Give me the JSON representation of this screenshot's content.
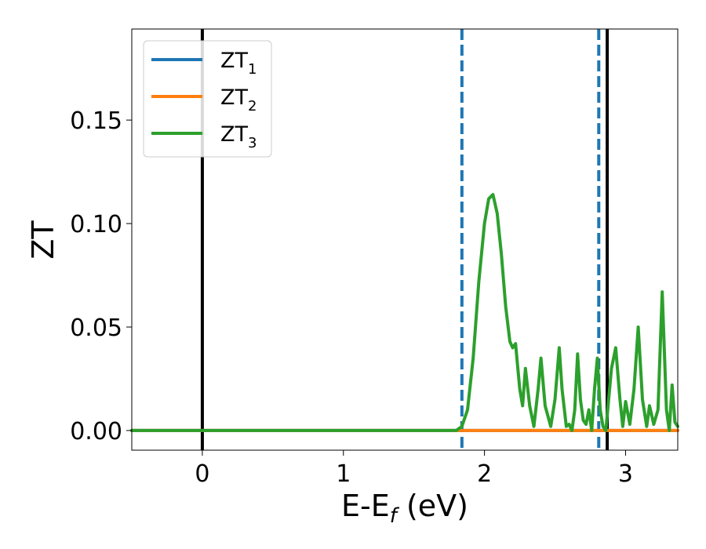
{
  "chart_data": {
    "type": "line",
    "xlabel": "E-E",
    "xlabel_sub": "f",
    "xlabel_unit": " (eV)",
    "ylabel": "ZT",
    "xlim": [
      -0.5,
      3.37
    ],
    "ylim": [
      -0.0095,
      0.194
    ],
    "grid": false,
    "legend_position": "top-left",
    "xticks": [
      {
        "value": 0,
        "label": "0"
      },
      {
        "value": 1,
        "label": "1"
      },
      {
        "value": 2,
        "label": "2"
      },
      {
        "value": 3,
        "label": "3"
      }
    ],
    "yticks": [
      {
        "value": 0.0,
        "label": "0.00"
      },
      {
        "value": 0.05,
        "label": "0.05"
      },
      {
        "value": 0.1,
        "label": "0.10"
      },
      {
        "value": 0.15,
        "label": "0.15"
      }
    ],
    "vlines": [
      {
        "x": 0.0,
        "color": "#000000",
        "style": "solid"
      },
      {
        "x": 2.87,
        "color": "#000000",
        "style": "solid"
      },
      {
        "x": 1.84,
        "color": "#1f77b4",
        "style": "dashed"
      },
      {
        "x": 2.81,
        "color": "#1f77b4",
        "style": "dashed"
      }
    ],
    "series": [
      {
        "name": "ZT",
        "name_sub": "1",
        "color": "#1f77b4",
        "x": [
          -0.5,
          1.84,
          3.37
        ],
        "y": [
          0.0,
          0.0,
          0.0
        ]
      },
      {
        "name": "ZT",
        "name_sub": "2",
        "color": "#ff7f0e",
        "x": [
          -0.5,
          1.84,
          3.37
        ],
        "y": [
          0.0,
          0.0,
          0.0
        ]
      },
      {
        "name": "ZT",
        "name_sub": "3",
        "color": "#2ca02c",
        "x": [
          -0.5,
          1.8,
          1.84,
          1.88,
          1.92,
          1.96,
          2.0,
          2.03,
          2.06,
          2.09,
          2.12,
          2.15,
          2.18,
          2.2,
          2.22,
          2.25,
          2.27,
          2.29,
          2.32,
          2.35,
          2.38,
          2.4,
          2.43,
          2.47,
          2.5,
          2.53,
          2.55,
          2.58,
          2.6,
          2.62,
          2.64,
          2.66,
          2.68,
          2.7,
          2.72,
          2.74,
          2.76,
          2.78,
          2.8,
          2.82,
          2.84,
          2.86,
          2.9,
          2.93,
          2.96,
          2.98,
          3.0,
          3.03,
          3.06,
          3.09,
          3.12,
          3.15,
          3.17,
          3.2,
          3.23,
          3.26,
          3.29,
          3.31,
          3.33,
          3.35,
          3.37
        ],
        "y": [
          0.0,
          0.0,
          0.002,
          0.01,
          0.035,
          0.072,
          0.1,
          0.112,
          0.114,
          0.105,
          0.085,
          0.06,
          0.043,
          0.04,
          0.042,
          0.02,
          0.012,
          0.03,
          0.012,
          0.002,
          0.02,
          0.035,
          0.012,
          0.002,
          0.015,
          0.04,
          0.02,
          0.002,
          0.003,
          0.0,
          0.01,
          0.037,
          0.015,
          0.005,
          0.003,
          0.01,
          0.0,
          0.02,
          0.035,
          0.01,
          0.002,
          0.0,
          0.03,
          0.04,
          0.015,
          0.002,
          0.014,
          0.003,
          0.02,
          0.05,
          0.015,
          0.002,
          0.012,
          0.003,
          0.01,
          0.067,
          0.01,
          0.0,
          0.022,
          0.004,
          0.002
        ]
      }
    ]
  }
}
